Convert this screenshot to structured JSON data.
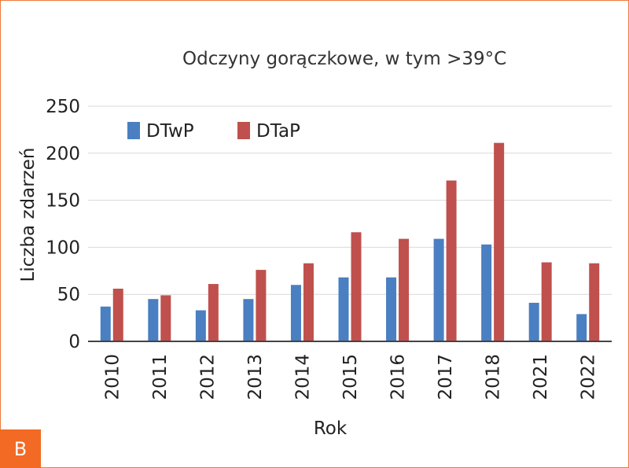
{
  "panel_label": "B",
  "colors": {
    "DTwP": "#4a7fc1",
    "DTaP": "#c0504d",
    "axis": "#444444",
    "grid": "#d9d9d9",
    "accent": "#f26a23"
  },
  "chart_data": {
    "type": "bar",
    "title": "Odczyny gorączkowe, w tym >39°C",
    "xlabel": "Rok",
    "ylabel": "Liczba zdarzeń",
    "ylim": [
      0,
      250
    ],
    "yticks": [
      0,
      50,
      100,
      150,
      200,
      250
    ],
    "grid": true,
    "legend_position": "top-left",
    "categories": [
      "2010",
      "2011",
      "2012",
      "2013",
      "2014",
      "2015",
      "2016",
      "2017",
      "2018",
      "2021",
      "2022"
    ],
    "series": [
      {
        "name": "DTwP",
        "values": [
          37,
          45,
          33,
          45,
          60,
          68,
          68,
          109,
          103,
          41,
          29
        ]
      },
      {
        "name": "DTaP",
        "values": [
          56,
          49,
          61,
          76,
          83,
          116,
          109,
          171,
          211,
          84,
          83
        ]
      }
    ]
  }
}
